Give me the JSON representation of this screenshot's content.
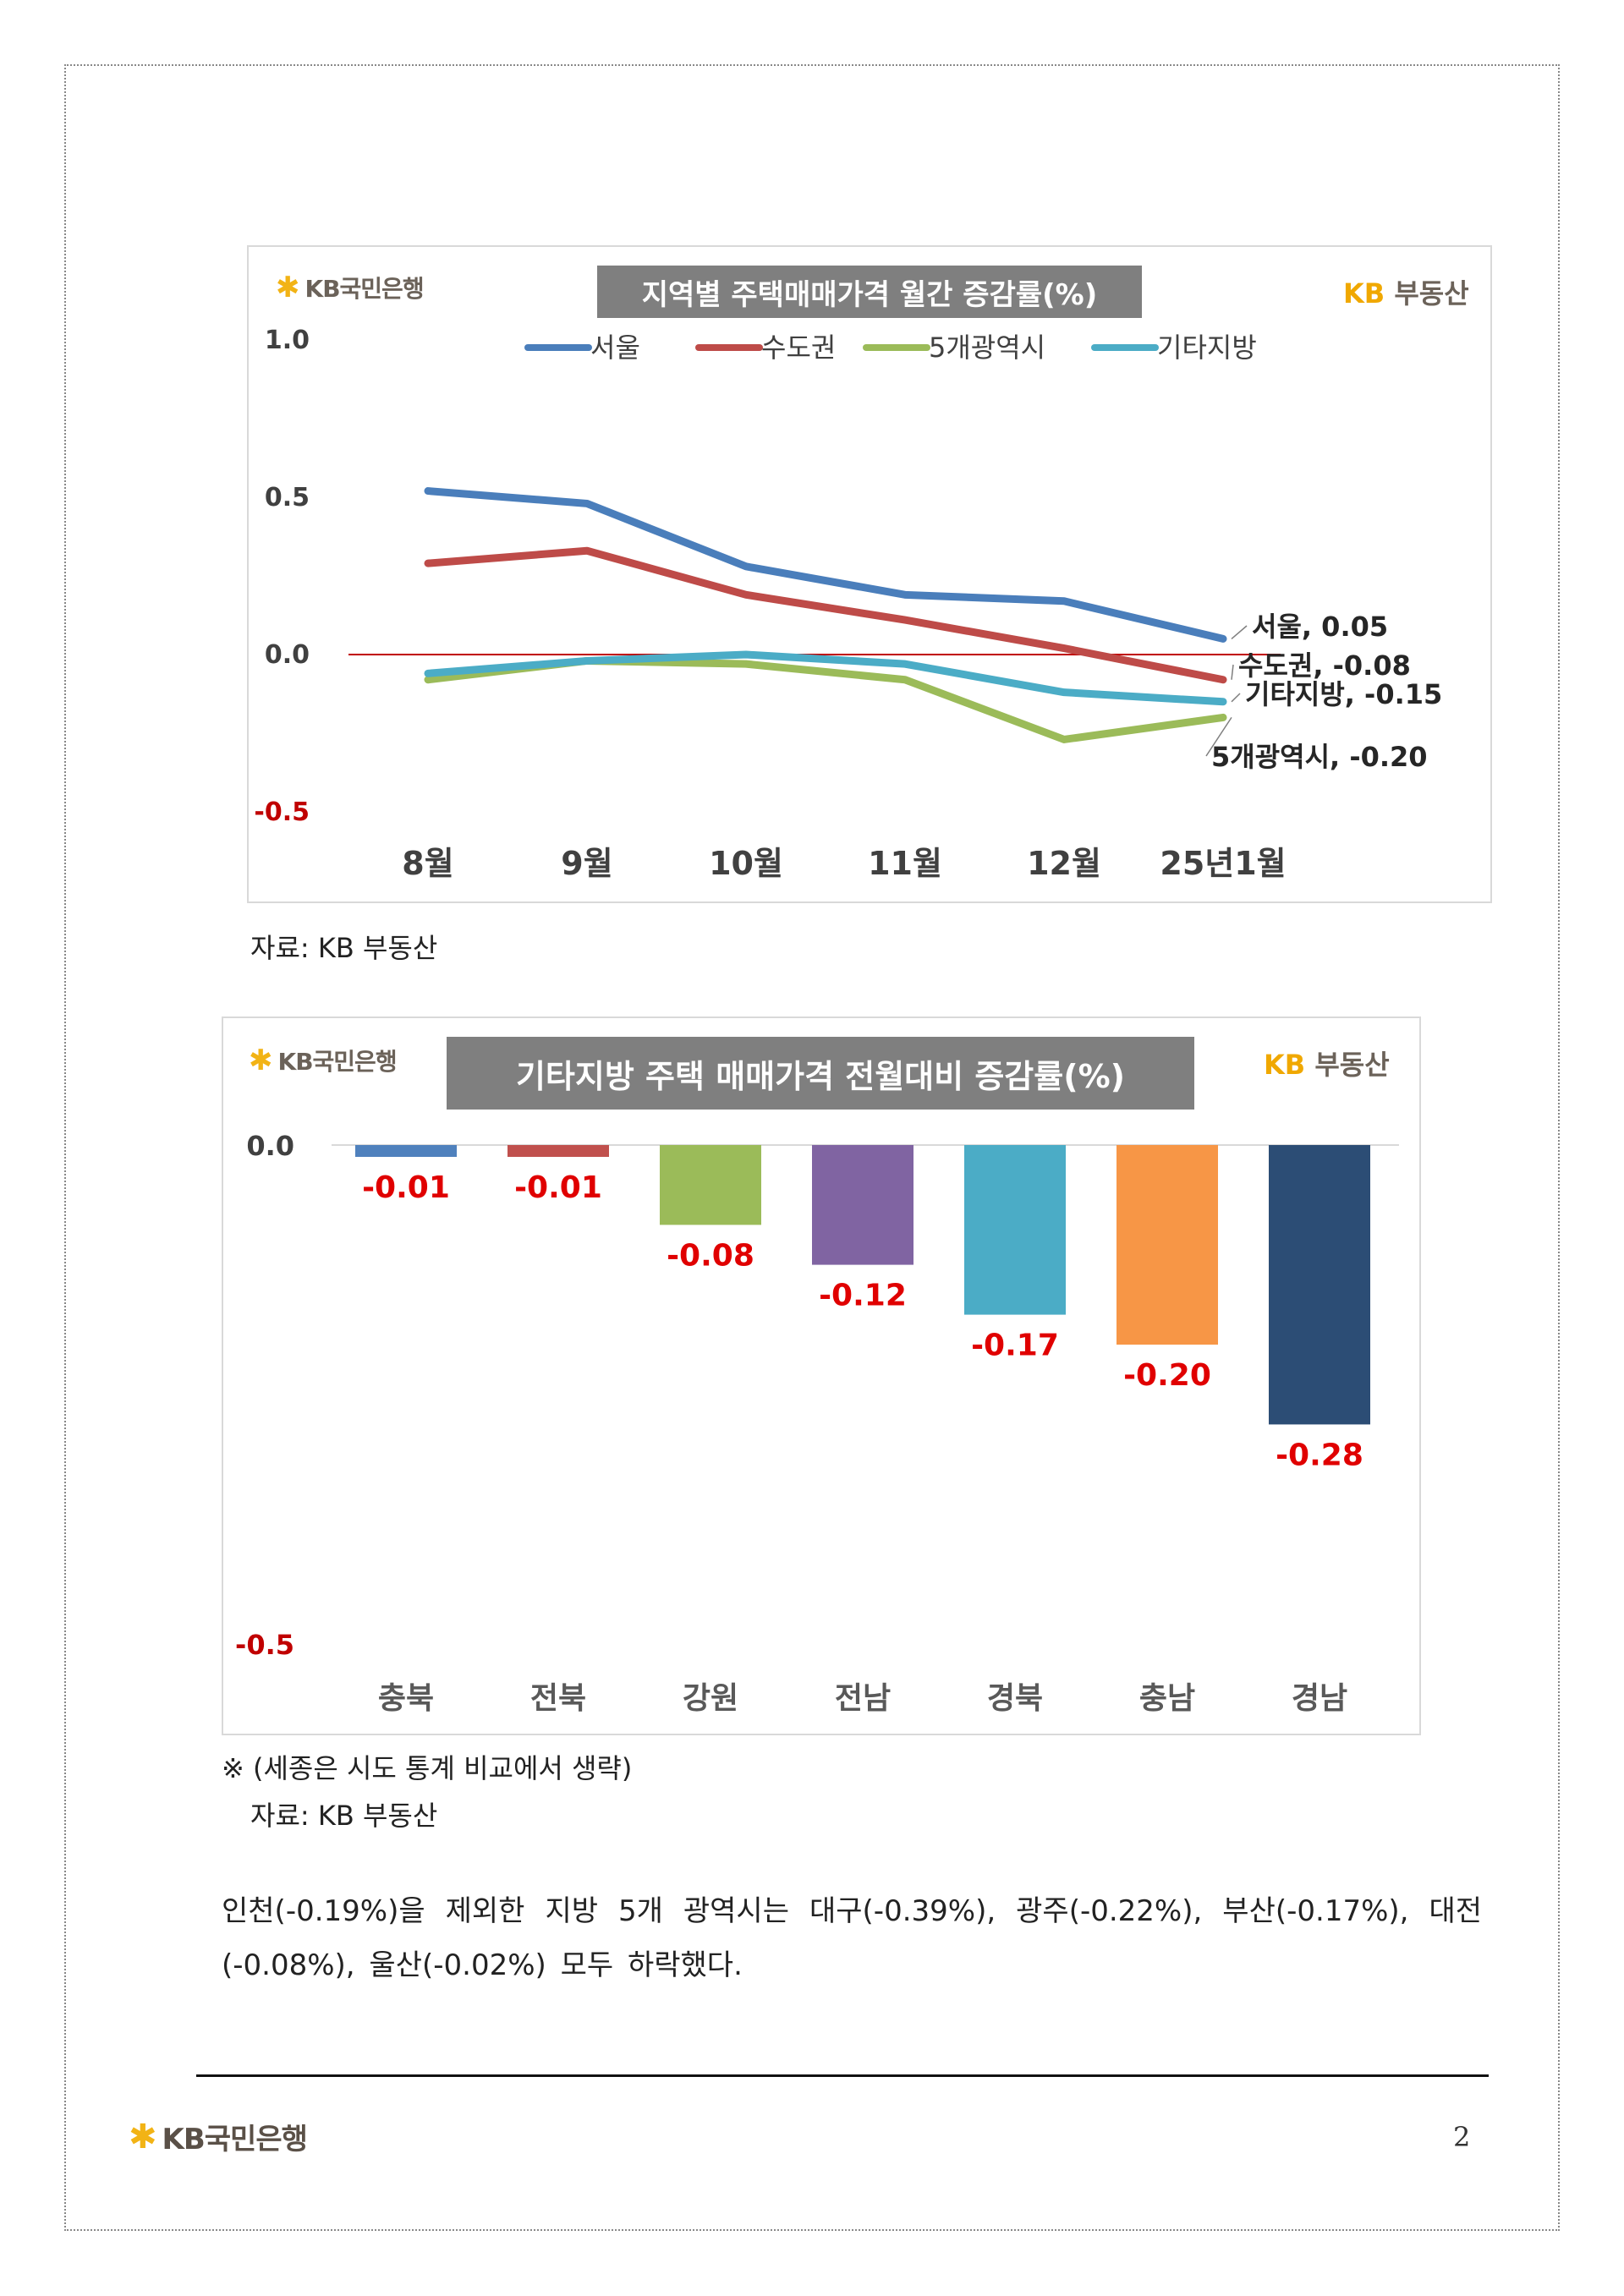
{
  "chart_data": [
    {
      "type": "line",
      "title": "지역별 주택매매가격 월간 증감률(%)",
      "categories": [
        "8월",
        "9월",
        "10월",
        "11월",
        "12월",
        "25년1월"
      ],
      "ylim": [
        -0.5,
        1.0
      ],
      "yticks": [
        "1.0",
        "0.5",
        "0.0",
        "-0.5"
      ],
      "legend_position": "top",
      "series": [
        {
          "name": "서울",
          "color": "#4a7ebb",
          "values": [
            0.52,
            0.48,
            0.28,
            0.19,
            0.17,
            0.05
          ],
          "end_label": "서울, 0.05"
        },
        {
          "name": "수도권",
          "color": "#be4b48",
          "values": [
            0.29,
            0.33,
            0.19,
            0.11,
            0.02,
            -0.08
          ],
          "end_label": "수도권, -0.08"
        },
        {
          "name": "5개광역시",
          "color": "#9bbb59",
          "values": [
            -0.08,
            -0.02,
            -0.03,
            -0.08,
            -0.27,
            -0.2
          ],
          "end_label": "5개광역시, -0.20"
        },
        {
          "name": "기타지방",
          "color": "#4bacc6",
          "values": [
            -0.06,
            -0.02,
            0.0,
            -0.03,
            -0.12,
            -0.15
          ],
          "end_label": "기타지방, -0.15"
        }
      ]
    },
    {
      "type": "bar",
      "title": "기타지방 주택 매매가격 전월대비 증감률(%)",
      "categories": [
        "충북",
        "전북",
        "강원",
        "전남",
        "경북",
        "충남",
        "경남"
      ],
      "values": [
        -0.01,
        -0.01,
        -0.08,
        -0.12,
        -0.17,
        -0.2,
        -0.28
      ],
      "value_labels": [
        "-0.01",
        "-0.01",
        "-0.08",
        "-0.12",
        "-0.17",
        "-0.20",
        "-0.28"
      ],
      "colors": [
        "#4f81bd",
        "#c0504d",
        "#9bbb59",
        "#8064a2",
        "#4bacc6",
        "#f79646",
        "#2c4d75"
      ],
      "ylim": [
        -0.5,
        0.0
      ],
      "yticks": [
        "0.0",
        "-0.5"
      ]
    }
  ],
  "chart1": {
    "logo_left": "KB국민은행",
    "logo_right_kb": "KB",
    "logo_right_rest": "부동산",
    "source": "자료: KB 부동산"
  },
  "chart2": {
    "logo_left": "KB국민은행",
    "logo_right_kb": "KB",
    "logo_right_rest": "부동산",
    "note": "※ (세종은 시도 통계 비교에서 생략)",
    "source": "자료: KB 부동산"
  },
  "body_text": "인천(-0.19%)을 제외한 지방 5개 광역시는 대구(-0.39%), 광주(-0.22%), 부산(-0.17%), 대전 (-0.08%), 울산(-0.02%) 모두 하락했다.",
  "footer": {
    "logo": "KB국민은행",
    "page_number": "2"
  },
  "colors": {
    "kb_gold": "#f2b315",
    "zero_line": "#c00000",
    "negative_label": "#e00000",
    "title_bg": "#7f7f7f"
  }
}
